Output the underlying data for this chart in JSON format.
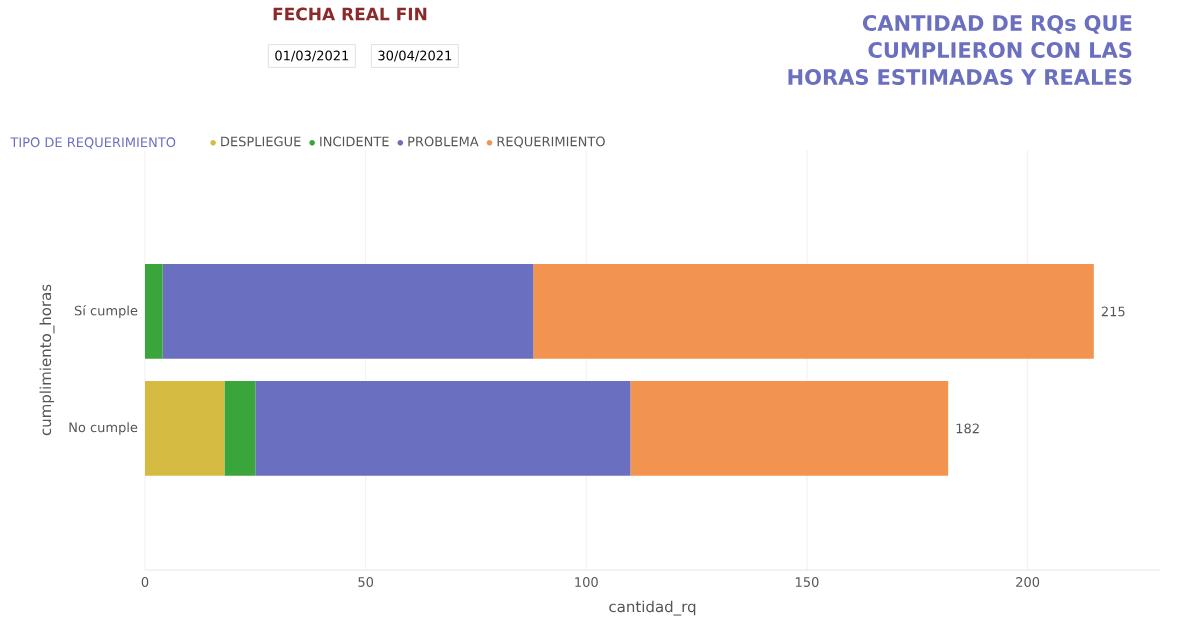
{
  "chart_data": {
    "type": "bar",
    "orientation": "horizontal",
    "stacked": true,
    "title": "CANTIDAD DE RQs QUE CUMPLIERON CON LAS HORAS ESTIMADAS Y REALES",
    "categories": [
      "Sí cumple",
      "No cumple"
    ],
    "series": [
      {
        "name": "DESPLIEGUE",
        "color": "#d6bb43",
        "values": [
          0,
          18
        ]
      },
      {
        "name": "INCIDENTE",
        "color": "#3aa53a",
        "values": [
          4,
          7
        ]
      },
      {
        "name": "PROBLEMA",
        "color": "#6b6fbf",
        "values": [
          84,
          85
        ]
      },
      {
        "name": "REQUERIMIENTO",
        "color": "#f2944f",
        "values": [
          127,
          72
        ]
      }
    ],
    "totals": [
      "215",
      "182"
    ],
    "xlim": [
      0,
      230
    ],
    "xticks": [
      0,
      50,
      100,
      150,
      200
    ],
    "xlabel": "cantidad_rq",
    "ylabel": "cumplimiento_horas",
    "legend_title": "TIPO DE REQUERIMIENTO",
    "legend": "top left",
    "grid": "x",
    "annotations": [
      "FECHA REAL FIN",
      "01/03/2021",
      "30/04/2021"
    ]
  }
}
